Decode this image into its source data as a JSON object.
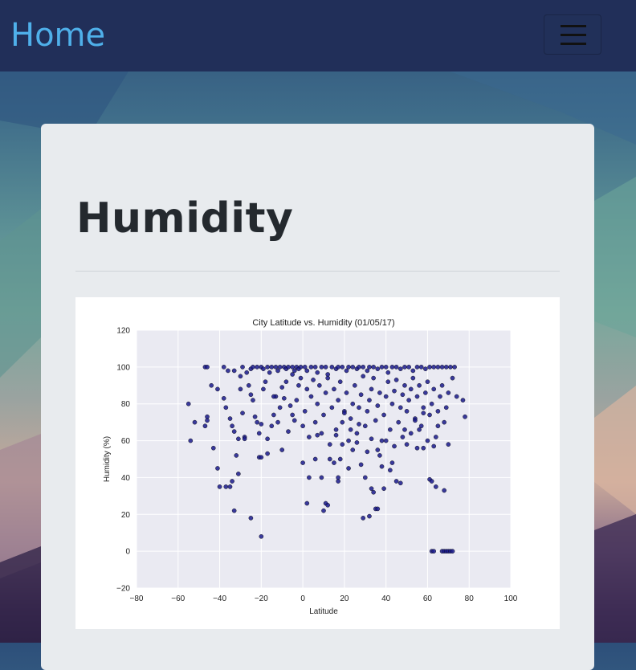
{
  "nav": {
    "brand": "Home",
    "menu_icon": "hamburger-menu-icon"
  },
  "page": {
    "title": "Humidity"
  },
  "colors": {
    "navbar": "#212f59",
    "brand": "#4fb0ea",
    "card": "#e8ebee",
    "plot_bg": "#eaeaf2",
    "point": "#1a1a8c"
  },
  "chart_data": {
    "type": "scatter",
    "title": "City Latitude vs. Humidity (01/05/17)",
    "xlabel": "Latitude",
    "ylabel": "Humidity (%)",
    "xlim": [
      -80,
      100
    ],
    "ylim": [
      -20,
      120
    ],
    "xticks": [
      -80,
      -60,
      -40,
      -20,
      0,
      20,
      40,
      60,
      80,
      100
    ],
    "yticks": [
      -20,
      0,
      20,
      40,
      60,
      80,
      100,
      120
    ],
    "xtick_labels": [
      "−80",
      "−60",
      "−40",
      "−20",
      "0",
      "20",
      "40",
      "60",
      "80",
      "100"
    ],
    "ytick_labels": [
      "−20",
      "0",
      "20",
      "40",
      "60",
      "80",
      "100",
      "120"
    ],
    "grid": true,
    "points": [
      [
        -47,
        100
      ],
      [
        -46,
        100
      ],
      [
        -38,
        100
      ],
      [
        -36,
        98
      ],
      [
        -33,
        98
      ],
      [
        -30,
        95
      ],
      [
        -29,
        100
      ],
      [
        -27,
        97
      ],
      [
        -25,
        99
      ],
      [
        -24,
        100
      ],
      [
        -22,
        100
      ],
      [
        -20,
        100
      ],
      [
        -19,
        99
      ],
      [
        -17,
        100
      ],
      [
        -16,
        97
      ],
      [
        -15,
        100
      ],
      [
        -13,
        100
      ],
      [
        -12,
        98
      ],
      [
        -11,
        100
      ],
      [
        -9,
        100
      ],
      [
        -8,
        99
      ],
      [
        -7,
        100
      ],
      [
        -5,
        100
      ],
      [
        -4,
        98
      ],
      [
        -3,
        100
      ],
      [
        -2,
        99
      ],
      [
        -1,
        100
      ],
      [
        1,
        100
      ],
      [
        2,
        98
      ],
      [
        4,
        100
      ],
      [
        6,
        100
      ],
      [
        7,
        97
      ],
      [
        9,
        100
      ],
      [
        11,
        100
      ],
      [
        12,
        96
      ],
      [
        14,
        100
      ],
      [
        16,
        99
      ],
      [
        17,
        100
      ],
      [
        19,
        100
      ],
      [
        21,
        98
      ],
      [
        22,
        100
      ],
      [
        24,
        100
      ],
      [
        26,
        99
      ],
      [
        27,
        100
      ],
      [
        29,
        100
      ],
      [
        31,
        98
      ],
      [
        32,
        100
      ],
      [
        34,
        100
      ],
      [
        36,
        99
      ],
      [
        38,
        100
      ],
      [
        40,
        100
      ],
      [
        41,
        97
      ],
      [
        43,
        100
      ],
      [
        45,
        100
      ],
      [
        47,
        99
      ],
      [
        49,
        100
      ],
      [
        51,
        100
      ],
      [
        53,
        98
      ],
      [
        55,
        100
      ],
      [
        57,
        100
      ],
      [
        59,
        99
      ],
      [
        61,
        100
      ],
      [
        63,
        100
      ],
      [
        65,
        100
      ],
      [
        67,
        100
      ],
      [
        69,
        100
      ],
      [
        71,
        100
      ],
      [
        73,
        100
      ],
      [
        -55,
        80
      ],
      [
        -54,
        60
      ],
      [
        -52,
        70
      ],
      [
        -46,
        73
      ],
      [
        -46,
        71
      ],
      [
        -47,
        68
      ],
      [
        -44,
        90
      ],
      [
        -41,
        88
      ],
      [
        -38,
        83
      ],
      [
        -37,
        78
      ],
      [
        -35,
        72
      ],
      [
        -34,
        68
      ],
      [
        -33,
        65
      ],
      [
        -31,
        61
      ],
      [
        -30,
        88
      ],
      [
        -29,
        75
      ],
      [
        -28,
        62
      ],
      [
        -26,
        90
      ],
      [
        -25,
        85
      ],
      [
        -24,
        82
      ],
      [
        -23,
        73
      ],
      [
        -22,
        70
      ],
      [
        -21,
        64
      ],
      [
        -20,
        69
      ],
      [
        -19,
        88
      ],
      [
        -18,
        92
      ],
      [
        -17,
        61
      ],
      [
        -15,
        68
      ],
      [
        -14,
        74
      ],
      [
        -13,
        84
      ],
      [
        -12,
        70
      ],
      [
        -11,
        78
      ],
      [
        -10,
        89
      ],
      [
        -9,
        83
      ],
      [
        -8,
        92
      ],
      [
        -7,
        65
      ],
      [
        -6,
        79
      ],
      [
        -5,
        96
      ],
      [
        -4,
        71
      ],
      [
        -3,
        82
      ],
      [
        -2,
        90
      ],
      [
        -1,
        94
      ],
      [
        0,
        68
      ],
      [
        1,
        76
      ],
      [
        2,
        88
      ],
      [
        3,
        62
      ],
      [
        4,
        84
      ],
      [
        5,
        93
      ],
      [
        6,
        70
      ],
      [
        7,
        80
      ],
      [
        8,
        90
      ],
      [
        9,
        64
      ],
      [
        10,
        74
      ],
      [
        11,
        86
      ],
      [
        12,
        94
      ],
      [
        13,
        58
      ],
      [
        14,
        78
      ],
      [
        15,
        88
      ],
      [
        16,
        66
      ],
      [
        17,
        82
      ],
      [
        18,
        92
      ],
      [
        19,
        70
      ],
      [
        20,
        76
      ],
      [
        21,
        86
      ],
      [
        22,
        60
      ],
      [
        23,
        72
      ],
      [
        24,
        80
      ],
      [
        25,
        90
      ],
      [
        26,
        64
      ],
      [
        27,
        78
      ],
      [
        28,
        85
      ],
      [
        29,
        95
      ],
      [
        30,
        68
      ],
      [
        31,
        76
      ],
      [
        32,
        82
      ],
      [
        33,
        88
      ],
      [
        34,
        94
      ],
      [
        35,
        71
      ],
      [
        36,
        79
      ],
      [
        37,
        86
      ],
      [
        38,
        60
      ],
      [
        39,
        74
      ],
      [
        40,
        84
      ],
      [
        41,
        92
      ],
      [
        42,
        66
      ],
      [
        43,
        80
      ],
      [
        44,
        87
      ],
      [
        45,
        93
      ],
      [
        46,
        70
      ],
      [
        47,
        78
      ],
      [
        48,
        85
      ],
      [
        49,
        90
      ],
      [
        50,
        76
      ],
      [
        51,
        82
      ],
      [
        52,
        88
      ],
      [
        53,
        94
      ],
      [
        54,
        72
      ],
      [
        55,
        84
      ],
      [
        56,
        90
      ],
      [
        57,
        68
      ],
      [
        58,
        78
      ],
      [
        59,
        86
      ],
      [
        60,
        92
      ],
      [
        61,
        74
      ],
      [
        62,
        80
      ],
      [
        63,
        88
      ],
      [
        64,
        62
      ],
      [
        65,
        76
      ],
      [
        66,
        84
      ],
      [
        67,
        90
      ],
      [
        68,
        70
      ],
      [
        69,
        78
      ],
      [
        70,
        86
      ],
      [
        72,
        94
      ],
      [
        74,
        84
      ],
      [
        77,
        82
      ],
      [
        78,
        73
      ],
      [
        -41,
        45
      ],
      [
        -40,
        35
      ],
      [
        -37,
        35
      ],
      [
        -35,
        35
      ],
      [
        -34,
        38
      ],
      [
        -33,
        22
      ],
      [
        -31,
        42
      ],
      [
        -25,
        18
      ],
      [
        -21,
        51
      ],
      [
        -20,
        51
      ],
      [
        -20,
        8
      ],
      [
        -17,
        53
      ],
      [
        -10,
        55
      ],
      [
        0,
        48
      ],
      [
        2,
        26
      ],
      [
        3,
        40
      ],
      [
        6,
        50
      ],
      [
        9,
        40
      ],
      [
        10,
        22
      ],
      [
        11,
        26
      ],
      [
        12,
        25
      ],
      [
        13,
        50
      ],
      [
        15,
        48
      ],
      [
        17,
        40
      ],
      [
        17,
        38
      ],
      [
        18,
        50
      ],
      [
        20,
        75
      ],
      [
        22,
        45
      ],
      [
        24,
        55
      ],
      [
        26,
        59
      ],
      [
        28,
        47
      ],
      [
        29,
        18
      ],
      [
        30,
        40
      ],
      [
        31,
        54
      ],
      [
        32,
        19
      ],
      [
        33,
        34
      ],
      [
        34,
        32
      ],
      [
        35,
        23
      ],
      [
        36,
        23
      ],
      [
        37,
        52
      ],
      [
        38,
        46
      ],
      [
        39,
        34
      ],
      [
        40,
        60
      ],
      [
        42,
        44
      ],
      [
        43,
        48
      ],
      [
        45,
        38
      ],
      [
        47,
        37
      ],
      [
        48,
        62
      ],
      [
        50,
        58
      ],
      [
        52,
        64
      ],
      [
        54,
        71
      ],
      [
        56,
        66
      ],
      [
        58,
        56
      ],
      [
        60,
        60
      ],
      [
        61,
        39
      ],
      [
        62,
        38
      ],
      [
        63,
        57
      ],
      [
        64,
        35
      ],
      [
        68,
        33
      ],
      [
        62,
        0
      ],
      [
        63,
        0
      ],
      [
        67,
        0
      ],
      [
        68,
        0
      ],
      [
        69,
        0
      ],
      [
        70,
        0
      ],
      [
        71,
        0
      ],
      [
        72,
        0
      ],
      [
        -43,
        56
      ],
      [
        -32,
        52
      ],
      [
        -28,
        61
      ],
      [
        -14,
        84
      ],
      [
        -5,
        74
      ],
      [
        7,
        63
      ],
      [
        16,
        63
      ],
      [
        19,
        58
      ],
      [
        23,
        66
      ],
      [
        27,
        69
      ],
      [
        33,
        61
      ],
      [
        36,
        55
      ],
      [
        44,
        57
      ],
      [
        49,
        66
      ],
      [
        55,
        56
      ],
      [
        58,
        75
      ],
      [
        65,
        68
      ],
      [
        70,
        58
      ]
    ]
  }
}
